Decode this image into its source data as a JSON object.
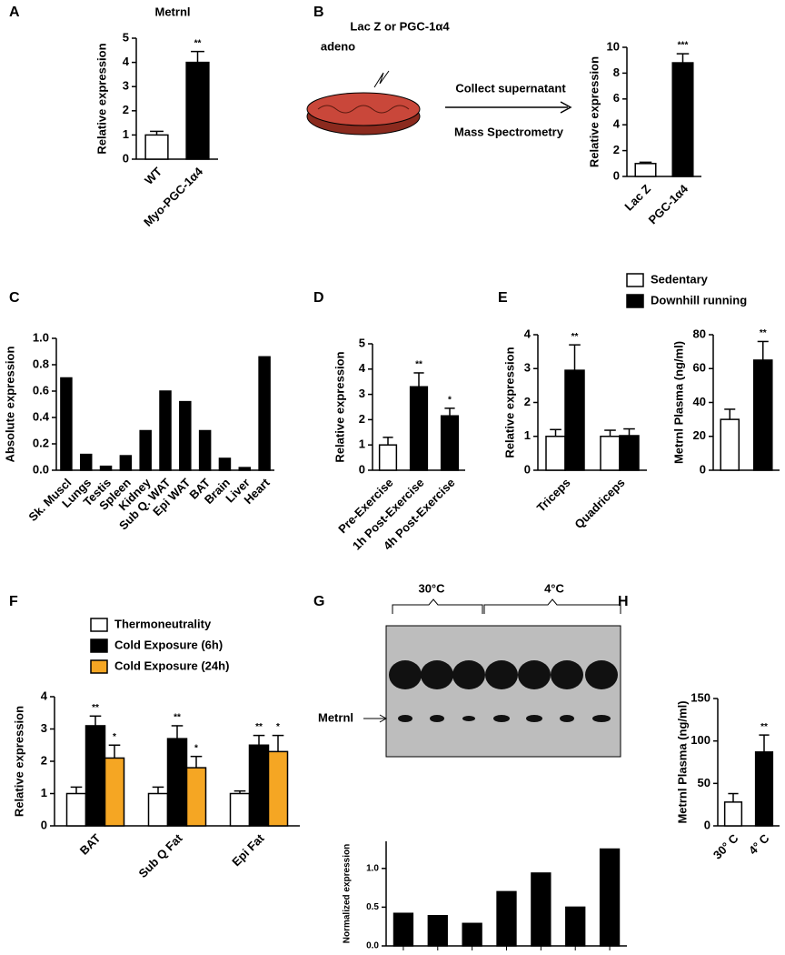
{
  "panels": [
    "A",
    "B",
    "C",
    "D",
    "E",
    "F",
    "G",
    "H"
  ],
  "diagram": {
    "treatment": "Lac Z or PGC-1α4",
    "treatment_2": "adeno",
    "step_1": "Collect supernatant",
    "step_2": "Mass Spectrometry"
  },
  "blot": {
    "group_1": "30°C",
    "group_2": "4°C",
    "band": "Metrnl"
  },
  "chart_data": [
    {
      "type": "bar",
      "title": "Metrnl",
      "y_label": "Relative expression",
      "categories": [
        "WT",
        "Myo-PGC-1α4"
      ],
      "values": [
        1.0,
        4.0
      ],
      "errors": [
        0.15,
        0.45
      ],
      "colors": [
        "#ffffff",
        "#000000"
      ],
      "annotations": [
        null,
        "**"
      ],
      "ylim": [
        0,
        5
      ],
      "yticks": [
        0,
        1,
        2,
        3,
        4,
        5
      ]
    },
    {
      "type": "bar",
      "y_label": "Relative expression",
      "categories": [
        "Lac Z",
        "PGC-1α4"
      ],
      "values": [
        1.0,
        8.8
      ],
      "errors": [
        0.1,
        0.7
      ],
      "colors": [
        "#ffffff",
        "#000000"
      ],
      "annotations": [
        null,
        "***"
      ],
      "ylim": [
        0,
        10
      ],
      "yticks": [
        0,
        2,
        4,
        6,
        8,
        10
      ]
    },
    {
      "type": "bar",
      "y_label": "Absolute expression",
      "categories": [
        "Sk. Muscl",
        "Lungs",
        "Testis",
        "Spleen",
        "Kidney",
        "Sub Q. WAT",
        "Epi WAT",
        "BAT",
        "Brain",
        "Liver",
        "Heart"
      ],
      "values": [
        0.7,
        0.12,
        0.03,
        0.11,
        0.3,
        0.6,
        0.52,
        0.3,
        0.09,
        0.02,
        0.86
      ],
      "colors": [
        "#000000",
        "#000000",
        "#000000",
        "#000000",
        "#000000",
        "#000000",
        "#000000",
        "#000000",
        "#000000",
        "#000000",
        "#000000"
      ],
      "ylim": [
        0,
        1.0
      ],
      "yticks": [
        {
          "value": 0,
          "label": "0.0"
        },
        0.2,
        0.4,
        0.6,
        0.8,
        {
          "value": 1,
          "label": "1.0"
        }
      ]
    },
    {
      "type": "bar",
      "y_label": "Relative expression",
      "categories": [
        "Pre-Exercise",
        "1h Post-Exercise",
        "4h Post-Exercise"
      ],
      "values": [
        1.0,
        3.3,
        2.15
      ],
      "errors": [
        0.3,
        0.55,
        0.3
      ],
      "colors": [
        "#ffffff",
        "#000000",
        "#000000"
      ],
      "annotations": [
        null,
        "**",
        "*"
      ],
      "ylim": [
        0,
        5
      ],
      "yticks": [
        0,
        1,
        2,
        3,
        4,
        5
      ]
    },
    {
      "type": "grouped_bar",
      "y_label": "Relative expression",
      "categories": [
        "Triceps",
        "Quadriceps"
      ],
      "series": [
        {
          "name": "Sedentary",
          "color": "#ffffff",
          "values": [
            1.0,
            1.0
          ],
          "errors": [
            0.2,
            0.18
          ],
          "annotations": [
            null,
            null
          ]
        },
        {
          "name": "Downhill running",
          "color": "#000000",
          "values": [
            2.95,
            1.02
          ],
          "errors": [
            0.75,
            0.2
          ],
          "annotations": [
            "**",
            null
          ]
        }
      ],
      "ylim": [
        0,
        4
      ],
      "yticks": [
        0,
        1,
        2,
        3,
        4
      ]
    },
    {
      "type": "bar",
      "y_label": "Metrnl Plasma (ng/ml)",
      "categories": [
        null,
        null
      ],
      "values": [
        30,
        65
      ],
      "errors": [
        6,
        11
      ],
      "colors": [
        "#ffffff",
        "#000000"
      ],
      "annotations": [
        null,
        "**"
      ],
      "ylim": [
        0,
        80
      ],
      "yticks": [
        0,
        20,
        40,
        60,
        80
      ]
    },
    {
      "type": "grouped_bar",
      "y_label": "Relative expression",
      "categories": [
        "BAT",
        "Sub Q Fat",
        "Epi Fat"
      ],
      "series": [
        {
          "name": "Thermoneutrality",
          "color": "#ffffff",
          "values": [
            1.0,
            1.0,
            1.0
          ],
          "errors": [
            0.2,
            0.2,
            0.08
          ],
          "annotations": [
            null,
            null,
            null
          ]
        },
        {
          "name": "Cold Exposure (6h)",
          "color": "#000000",
          "values": [
            3.1,
            2.7,
            2.5
          ],
          "errors": [
            0.3,
            0.4,
            0.3
          ],
          "annotations": [
            "**",
            "**",
            "**"
          ]
        },
        {
          "name": "Cold Exposure (24h)",
          "color": "#f5a623",
          "values": [
            2.1,
            1.8,
            2.3
          ],
          "errors": [
            0.4,
            0.35,
            0.5
          ],
          "annotations": [
            "*",
            "*",
            "*"
          ]
        }
      ],
      "ylim": [
        0,
        4
      ],
      "yticks": [
        0,
        1,
        2,
        3,
        4
      ]
    },
    {
      "type": "bar",
      "y_label": "Normalized expression",
      "categories": [
        null,
        null,
        null,
        null,
        null,
        null,
        null
      ],
      "values": [
        0.42,
        0.39,
        0.29,
        0.7,
        0.94,
        0.5,
        1.25
      ],
      "colors": [
        "#000000",
        "#000000",
        "#000000",
        "#000000",
        "#000000",
        "#000000",
        "#000000"
      ],
      "ylim": [
        0,
        1.35
      ],
      "yticks": [
        {
          "value": 0,
          "label": "0.0"
        },
        0.5,
        {
          "value": 1,
          "label": "1.0"
        }
      ]
    },
    {
      "type": "bar",
      "y_label": "Metrnl Plasma (ng/ml)",
      "categories": [
        "30° C",
        "4° C"
      ],
      "values": [
        28,
        87
      ],
      "errors": [
        10,
        20
      ],
      "colors": [
        "#ffffff",
        "#000000"
      ],
      "annotations": [
        null,
        "**"
      ],
      "ylim": [
        0,
        150
      ],
      "yticks": [
        0,
        50,
        100,
        150
      ]
    }
  ]
}
